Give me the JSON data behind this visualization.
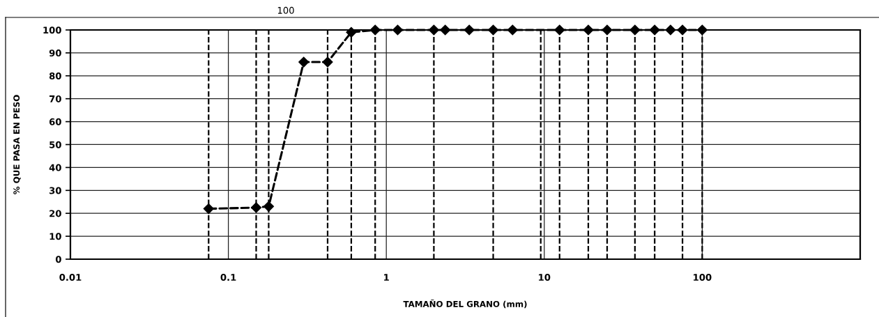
{
  "chart_data": {
    "type": "line",
    "xlabel": "TAMAÑO DEL GRANO (mm)",
    "ylabel": "% QUE PASA EN PESO",
    "annotations": [
      "100"
    ],
    "x": [
      0.075,
      0.15,
      0.18,
      0.3,
      0.425,
      0.6,
      0.85,
      1.18,
      2,
      2.36,
      3.35,
      4.75,
      6.3,
      12.5,
      19,
      25,
      37.5,
      50,
      63,
      75,
      100
    ],
    "series": [
      {
        "color": "#000000",
        "values": [
          22,
          22.5,
          23,
          86,
          86,
          99,
          100,
          100,
          100,
          100,
          100,
          100,
          100,
          100,
          100,
          100,
          100,
          100,
          100,
          100,
          100
        ]
      }
    ],
    "log": "x",
    "xlim": [
      0.01,
      1000
    ],
    "xticks": [
      0.01,
      0.1,
      1,
      10,
      100
    ],
    "ylim": [
      0,
      100
    ],
    "yticks": [
      0,
      10,
      20,
      30,
      40,
      50,
      60,
      70,
      80,
      90,
      100
    ],
    "grid": true,
    "marker": "diamond",
    "line_style": "dashed",
    "ref_lines": [
      {
        "axis": "x",
        "value": 0.075,
        "color": "#000000",
        "line_style": "dashed"
      },
      {
        "axis": "x",
        "value": 0.15,
        "color": "#000000",
        "line_style": "dashed"
      },
      {
        "axis": "x",
        "value": 0.18,
        "color": "#000000",
        "line_style": "dashed"
      },
      {
        "axis": "x",
        "value": 0.425,
        "color": "#000000",
        "line_style": "dashed"
      },
      {
        "axis": "x",
        "value": 0.6,
        "color": "#000000",
        "line_style": "dashed"
      },
      {
        "axis": "x",
        "value": 0.85,
        "color": "#000000",
        "line_style": "dashed"
      },
      {
        "axis": "x",
        "value": 2,
        "color": "#000000",
        "line_style": "dashed"
      },
      {
        "axis": "x",
        "value": 4.75,
        "color": "#000000",
        "line_style": "dashed"
      },
      {
        "axis": "x",
        "value": 9.5,
        "color": "#000000",
        "line_style": "dashed"
      },
      {
        "axis": "x",
        "value": 12.5,
        "color": "#000000",
        "line_style": "dashed"
      },
      {
        "axis": "x",
        "value": 19,
        "color": "#000000",
        "line_style": "dashed"
      },
      {
        "axis": "x",
        "value": 25,
        "color": "#000000",
        "line_style": "dashed"
      },
      {
        "axis": "x",
        "value": 37.5,
        "color": "#000000",
        "line_style": "dashed"
      },
      {
        "axis": "x",
        "value": 50,
        "color": "#000000",
        "line_style": "dashed"
      },
      {
        "axis": "x",
        "value": 75,
        "color": "#000000",
        "line_style": "dashed"
      },
      {
        "axis": "x",
        "value": 100,
        "color": "#000000",
        "line_style": "dashed"
      }
    ]
  }
}
